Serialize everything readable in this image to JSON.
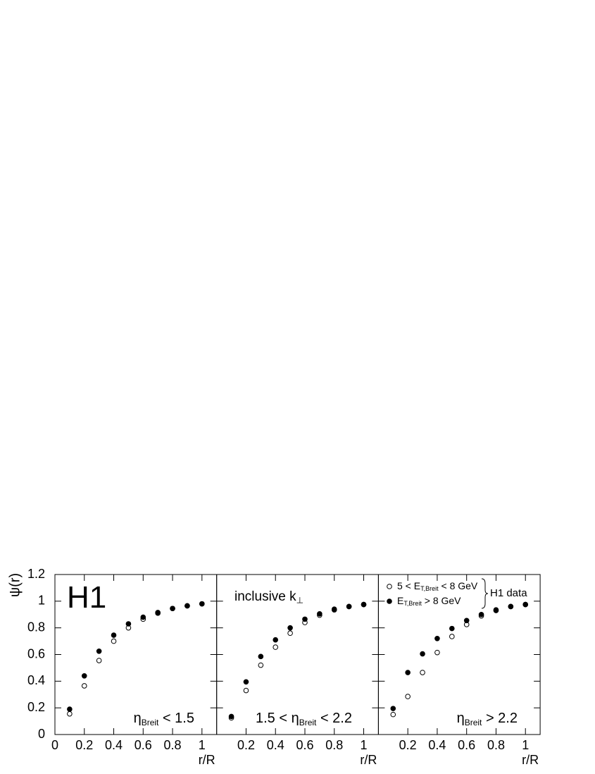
{
  "chart_data": [
    {
      "type": "scatter",
      "ylabel": "ψ(r)",
      "xlabel": "r/R",
      "xlim": [
        0,
        1.1
      ],
      "xticks": [
        0,
        0.2,
        0.4,
        0.6,
        0.8,
        1
      ],
      "ylim": [
        0,
        1.2
      ],
      "yticks": [
        0,
        0.2,
        0.4,
        0.6,
        0.8,
        1,
        1.2
      ],
      "x": [
        0.1,
        0.2,
        0.3,
        0.4,
        0.5,
        0.6,
        0.7,
        0.8,
        0.9,
        1
      ],
      "series": [
        {
          "marker": "open",
          "color": "#000000",
          "values": [
            0.155,
            0.365,
            0.555,
            0.7,
            0.8,
            0.865,
            0.91,
            0.945,
            0.965,
            0.98
          ]
        },
        {
          "marker": "filled",
          "color": "#000000",
          "values": [
            0.19,
            0.44,
            0.625,
            0.745,
            0.83,
            0.88,
            0.915,
            0.945,
            0.965,
            0.98
          ]
        }
      ],
      "annotations": [
        [
          {
            "text": "H1"
          }
        ],
        [
          {
            "text": "η"
          },
          {
            "text": "Breit",
            "sub": true
          },
          {
            "text": " < 1.5"
          }
        ]
      ]
    },
    {
      "type": "scatter",
      "xlabel": "r/R",
      "xlim": [
        0,
        1.1
      ],
      "xticks": [
        0.2,
        0.4,
        0.6,
        0.8,
        1
      ],
      "ylim": [
        0,
        1.2
      ],
      "x": [
        0.1,
        0.2,
        0.3,
        0.4,
        0.5,
        0.6,
        0.7,
        0.8,
        0.9,
        1
      ],
      "series": [
        {
          "marker": "open",
          "color": "#000000",
          "values": [
            0.125,
            0.33,
            0.52,
            0.655,
            0.76,
            0.84,
            0.895,
            0.935,
            0.96,
            0.975
          ]
        },
        {
          "marker": "filled",
          "color": "#000000",
          "values": [
            0.135,
            0.395,
            0.585,
            0.71,
            0.8,
            0.865,
            0.905,
            0.94,
            0.96,
            0.975
          ]
        }
      ],
      "annotations": [
        [
          {
            "text": "inclusive k"
          },
          {
            "text": "⊥",
            "sub": true
          }
        ],
        [
          {
            "text": "1.5 < η"
          },
          {
            "text": "Breit",
            "sub": true
          },
          {
            "text": " < 2.2"
          }
        ]
      ]
    },
    {
      "type": "scatter",
      "xlabel": "r/R",
      "xlim": [
        0,
        1.1
      ],
      "xticks": [
        0.2,
        0.4,
        0.6,
        0.8,
        1
      ],
      "ylim": [
        0,
        1.2
      ],
      "x": [
        0.1,
        0.2,
        0.3,
        0.4,
        0.5,
        0.6,
        0.7,
        0.8,
        0.9,
        1
      ],
      "series": [
        {
          "name": [
            {
              "text": "5 < E"
            },
            {
              "text": "T,Breit",
              "sub": true
            },
            {
              "text": " < 8 GeV"
            }
          ],
          "marker": "open",
          "color": "#000000",
          "values": [
            0.15,
            0.285,
            0.465,
            0.615,
            0.735,
            0.825,
            0.89,
            0.935,
            0.96,
            0.975
          ]
        },
        {
          "name": [
            {
              "text": "E"
            },
            {
              "text": "T,Breit",
              "sub": true
            },
            {
              "text": " > 8 GeV"
            }
          ],
          "marker": "filled",
          "color": "#000000",
          "values": [
            0.195,
            0.465,
            0.605,
            0.72,
            0.795,
            0.855,
            0.9,
            0.93,
            0.96,
            0.975
          ]
        }
      ],
      "legend_group": "H1 data",
      "annotations": [
        [
          {
            "text": "η"
          },
          {
            "text": "Breit",
            "sub": true
          },
          {
            "text": " > 2.2"
          }
        ]
      ]
    }
  ]
}
